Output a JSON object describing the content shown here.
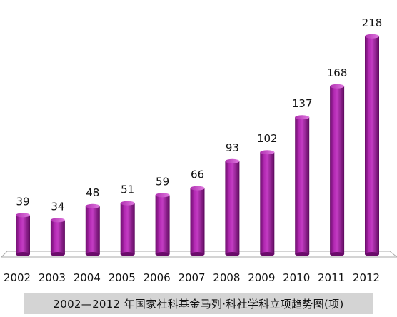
{
  "chart_data": {
    "type": "bar",
    "categories": [
      "2002",
      "2003",
      "2004",
      "2005",
      "2006",
      "2007",
      "2008",
      "2009",
      "2010",
      "2011",
      "2012"
    ],
    "values": [
      39,
      34,
      48,
      51,
      59,
      66,
      93,
      102,
      137,
      168,
      218
    ],
    "title": "2002—2012 年国家社科基金马列·科社学科立项趋势图(项)",
    "xlabel": "",
    "ylabel": "",
    "ylim": [
      0,
      230
    ],
    "grid": false,
    "legend": "none",
    "data_labels": true,
    "colors": {
      "bar": "#9b1b9b",
      "bar_light": "#d866d8",
      "bar_dark": "#5a0a5a"
    }
  },
  "caption": "2002—2012 年国家社科基金马列·科社学科立项趋势图(项)"
}
